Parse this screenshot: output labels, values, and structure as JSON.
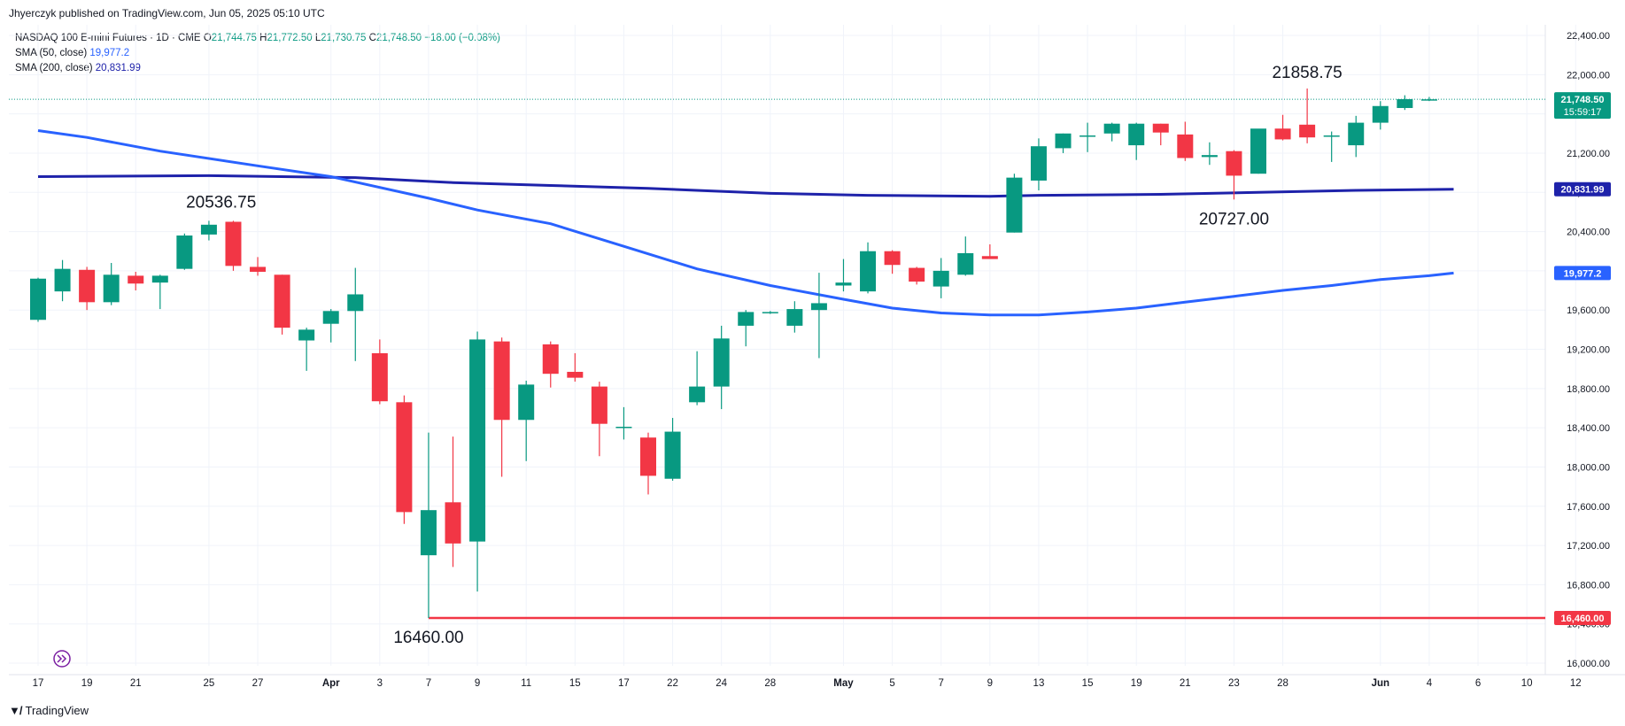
{
  "header": {
    "publisher": "Jhyerczyk published on TradingView.com, Jun 05, 2025 05:10 UTC"
  },
  "legend": {
    "symbol": "NASDAQ 100 E-mini Futures · 1D · CME",
    "o_label": "O",
    "o_value": "21,744.75",
    "h_label": "H",
    "h_value": "21,772.50",
    "l_label": "L",
    "l_value": "21,730.75",
    "c_label": "C",
    "c_value": "21,748.50",
    "change": "−18.00 (−0.08%)",
    "sma50_label": "SMA (50, close)",
    "sma50_value": "19,977.2",
    "sma200_label": "SMA (200, close)",
    "sma200_value": "20,831.99"
  },
  "footer": {
    "brand": "TradingView",
    "brand_icon": "tradingview-logo-icon"
  },
  "colors": {
    "up": "#089981",
    "down": "#f23645",
    "sma50": "#2962ff",
    "sma200": "#1e22aa",
    "support": "#f23645"
  },
  "chart_data": {
    "type": "candlestick",
    "y_range": [
      15850,
      22550
    ],
    "y_ticks": [
      16000,
      16400,
      16800,
      17200,
      17600,
      18000,
      18400,
      18800,
      19200,
      19600,
      20000,
      20400,
      20800,
      21200,
      21600,
      22000,
      22400
    ],
    "y_tick_labels": [
      "16,000.00",
      "16,400.00",
      "16,800.00",
      "17,200.00",
      "17,600.00",
      "18,000.00",
      "18,400.00",
      "18,800.00",
      "19,200.00",
      "19,600.00",
      "20,000.00",
      "20,400.00",
      "20,800.00",
      "21,200.00",
      "21,600.00",
      "22,000.00",
      "22,400.00"
    ],
    "x_labels": [
      "17",
      "19",
      "21",
      "25",
      "27",
      "Apr",
      "3",
      "7",
      "9",
      "11",
      "15",
      "17",
      "22",
      "24",
      "28",
      "May",
      "5",
      "7",
      "9",
      "13",
      "15",
      "19",
      "21",
      "23",
      "28",
      "Jun",
      "4",
      "6",
      "10",
      "12"
    ],
    "x_label_bar_index": [
      0,
      2,
      4,
      7,
      9,
      12,
      14,
      16,
      18,
      20,
      22,
      24,
      26,
      28,
      30,
      33,
      35,
      37,
      39,
      41,
      43,
      45,
      47,
      49,
      51,
      55,
      57,
      59,
      61,
      63
    ],
    "bold_labels": [
      "Apr",
      "May",
      "Jun"
    ],
    "candles": [
      {
        "o": 19500,
        "h": 19930,
        "l": 19480,
        "c": 19920
      },
      {
        "o": 19790,
        "h": 20110,
        "l": 19690,
        "c": 20020
      },
      {
        "o": 20010,
        "h": 20040,
        "l": 19600,
        "c": 19680
      },
      {
        "o": 19680,
        "h": 20080,
        "l": 19650,
        "c": 19960
      },
      {
        "o": 19950,
        "h": 19990,
        "l": 19800,
        "c": 19870
      },
      {
        "o": 19880,
        "h": 19960,
        "l": 19610,
        "c": 19950
      },
      {
        "o": 20020,
        "h": 20380,
        "l": 20010,
        "c": 20360
      },
      {
        "o": 20370,
        "h": 20510,
        "l": 20310,
        "c": 20470
      },
      {
        "o": 20500,
        "h": 20510,
        "l": 20000,
        "c": 20050
      },
      {
        "o": 20040,
        "h": 20140,
        "l": 19950,
        "c": 19990
      },
      {
        "o": 19960,
        "h": 19960,
        "l": 19350,
        "c": 19420
      },
      {
        "o": 19290,
        "h": 19420,
        "l": 18980,
        "c": 19400
      },
      {
        "o": 19460,
        "h": 19610,
        "l": 19270,
        "c": 19590
      },
      {
        "o": 19590,
        "h": 20030,
        "l": 19080,
        "c": 19760
      },
      {
        "o": 19160,
        "h": 19300,
        "l": 18640,
        "c": 18670
      },
      {
        "o": 18660,
        "h": 18730,
        "l": 17420,
        "c": 17540
      },
      {
        "o": 17100,
        "h": 18350,
        "l": 16460,
        "c": 17560
      },
      {
        "o": 17640,
        "h": 18310,
        "l": 16980,
        "c": 17220
      },
      {
        "o": 17240,
        "h": 19380,
        "l": 16730,
        "c": 19300
      },
      {
        "o": 19280,
        "h": 19320,
        "l": 17900,
        "c": 18480
      },
      {
        "o": 18480,
        "h": 18880,
        "l": 18060,
        "c": 18840
      },
      {
        "o": 19250,
        "h": 19280,
        "l": 18810,
        "c": 18950
      },
      {
        "o": 18970,
        "h": 19160,
        "l": 18870,
        "c": 18910
      },
      {
        "o": 18820,
        "h": 18870,
        "l": 18110,
        "c": 18440
      },
      {
        "o": 18410,
        "h": 18610,
        "l": 18280,
        "c": 18410
      },
      {
        "o": 18300,
        "h": 18350,
        "l": 17720,
        "c": 17910
      },
      {
        "o": 17880,
        "h": 18500,
        "l": 17860,
        "c": 18360
      },
      {
        "o": 18660,
        "h": 19180,
        "l": 18630,
        "c": 18820
      },
      {
        "o": 18820,
        "h": 19440,
        "l": 18590,
        "c": 19310
      },
      {
        "o": 19440,
        "h": 19600,
        "l": 19230,
        "c": 19580
      },
      {
        "o": 19580,
        "h": 19590,
        "l": 19560,
        "c": 19580
      },
      {
        "o": 19440,
        "h": 19690,
        "l": 19370,
        "c": 19610
      },
      {
        "o": 19600,
        "h": 19980,
        "l": 19110,
        "c": 19670
      },
      {
        "o": 19850,
        "h": 20120,
        "l": 19790,
        "c": 19880
      },
      {
        "o": 19790,
        "h": 20290,
        "l": 19770,
        "c": 20200
      },
      {
        "o": 20200,
        "h": 20210,
        "l": 19970,
        "c": 20060
      },
      {
        "o": 20030,
        "h": 20040,
        "l": 19860,
        "c": 19890
      },
      {
        "o": 19840,
        "h": 20130,
        "l": 19720,
        "c": 20000
      },
      {
        "o": 19960,
        "h": 20350,
        "l": 19950,
        "c": 20180
      },
      {
        "o": 20150,
        "h": 20270,
        "l": 20130,
        "c": 20120
      },
      {
        "o": 20390,
        "h": 20990,
        "l": 20390,
        "c": 20950
      },
      {
        "o": 20920,
        "h": 21350,
        "l": 20820,
        "c": 21270
      },
      {
        "o": 21250,
        "h": 21400,
        "l": 21200,
        "c": 21400
      },
      {
        "o": 21380,
        "h": 21510,
        "l": 21210,
        "c": 21380
      },
      {
        "o": 21400,
        "h": 21510,
        "l": 21320,
        "c": 21500
      },
      {
        "o": 21280,
        "h": 21510,
        "l": 21130,
        "c": 21500
      },
      {
        "o": 21500,
        "h": 21500,
        "l": 21280,
        "c": 21410
      },
      {
        "o": 21390,
        "h": 21520,
        "l": 21120,
        "c": 21150
      },
      {
        "o": 21160,
        "h": 21310,
        "l": 21080,
        "c": 21180
      },
      {
        "o": 21220,
        "h": 21230,
        "l": 20727,
        "c": 20970
      },
      {
        "o": 20990,
        "h": 21440,
        "l": 20990,
        "c": 21450
      },
      {
        "o": 21450,
        "h": 21590,
        "l": 21330,
        "c": 21340
      },
      {
        "o": 21490,
        "h": 21858.75,
        "l": 21300,
        "c": 21360
      },
      {
        "o": 21370,
        "h": 21420,
        "l": 21110,
        "c": 21380
      },
      {
        "o": 21280,
        "h": 21580,
        "l": 21160,
        "c": 21510
      },
      {
        "o": 21510,
        "h": 21730,
        "l": 21440,
        "c": 21680
      },
      {
        "o": 21660,
        "h": 21790,
        "l": 21640,
        "c": 21750
      },
      {
        "o": 21744.75,
        "h": 21772.5,
        "l": 21730.75,
        "c": 21748.5
      }
    ],
    "sma50": {
      "name": "SMA (50, close)",
      "points": [
        [
          0,
          21430
        ],
        [
          2,
          21360
        ],
        [
          5,
          21220
        ],
        [
          9,
          21070
        ],
        [
          12,
          20960
        ],
        [
          16,
          20740
        ],
        [
          18,
          20620
        ],
        [
          21,
          20480
        ],
        [
          24,
          20250
        ],
        [
          27,
          20020
        ],
        [
          30,
          19850
        ],
        [
          33,
          19710
        ],
        [
          35,
          19620
        ],
        [
          37,
          19570
        ],
        [
          39,
          19550
        ],
        [
          41,
          19550
        ],
        [
          43,
          19580
        ],
        [
          45,
          19620
        ],
        [
          47,
          19680
        ],
        [
          49,
          19740
        ],
        [
          51,
          19800
        ],
        [
          53,
          19850
        ],
        [
          55,
          19910
        ],
        [
          57,
          19950
        ],
        [
          58,
          19977.2
        ]
      ]
    },
    "sma200": {
      "name": "SMA (200, close)",
      "points": [
        [
          0,
          20960
        ],
        [
          7,
          20970
        ],
        [
          13,
          20950
        ],
        [
          17,
          20900
        ],
        [
          21,
          20870
        ],
        [
          25,
          20840
        ],
        [
          30,
          20790
        ],
        [
          34,
          20770
        ],
        [
          39,
          20760
        ],
        [
          41,
          20770
        ],
        [
          46,
          20780
        ],
        [
          50,
          20800
        ],
        [
          54,
          20820
        ],
        [
          58,
          20831.99
        ]
      ]
    },
    "support_line": {
      "value": 16460,
      "start_index": 16
    },
    "annotations": [
      {
        "text": "20536.75",
        "index": 7.5,
        "value": 20536.75,
        "place": "above"
      },
      {
        "text": "16460.00",
        "index": 16,
        "value": 16460,
        "place": "below"
      },
      {
        "text": "20727.00",
        "index": 49,
        "value": 20727,
        "place": "below"
      },
      {
        "text": "21858.75",
        "index": 52,
        "value": 21858.75,
        "place": "above"
      }
    ],
    "price_tags": [
      {
        "text": "21,748.50",
        "sub": "15:59:17",
        "value": 21748.5,
        "color": "#089981"
      },
      {
        "text": "20,831.99",
        "value": 20831.99,
        "color": "#1e22aa"
      },
      {
        "text": "19,977.2",
        "value": 19977.2,
        "color": "#2962ff"
      },
      {
        "text": "16,460.00",
        "value": 16460,
        "color": "#f23645"
      }
    ],
    "last_price": 21748.5,
    "grid": true
  }
}
